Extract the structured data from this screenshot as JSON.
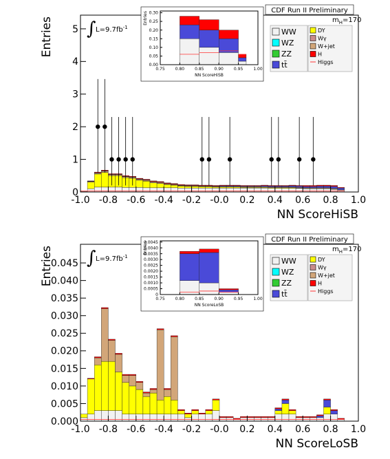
{
  "chart_data": [
    {
      "type": "stacked_histogram",
      "xlabel": "NN ScoreHiSB",
      "ylabel": "Entries",
      "title": "CDF Run II Preliminary",
      "mass": {
        "symbol": "m",
        "subscript": "H",
        "text": "=170"
      },
      "lumi": {
        "symbol": "∫",
        "text": "L=9.7fb",
        "sup": "-1"
      },
      "xlim": [
        -1,
        1
      ],
      "ylim": [
        0,
        5.42
      ],
      "xticks": [
        {
          "value": -1,
          "label": "-1.0"
        },
        -0.8,
        -0.6,
        -0.4,
        -0.2,
        {
          "value": 0,
          "label": "-0.0"
        },
        0.2,
        0.4,
        0.6,
        0.8,
        {
          "value": 1,
          "label": "1.0"
        }
      ],
      "yticks": [
        0,
        1,
        2,
        3,
        4,
        5
      ],
      "bins": [
        -1,
        -0.95,
        -0.9,
        -0.85,
        -0.8,
        -0.75,
        -0.7,
        -0.65,
        -0.6,
        -0.55,
        -0.5,
        -0.45,
        -0.4,
        -0.35,
        -0.3,
        -0.25,
        -0.2,
        -0.15,
        -0.1,
        -0.05,
        0,
        0.05,
        0.1,
        0.15,
        0.2,
        0.25,
        0.3,
        0.35,
        0.4,
        0.45,
        0.5,
        0.55,
        0.6,
        0.65,
        0.7,
        0.75,
        0.8,
        0.85,
        0.9,
        0.95,
        1
      ],
      "series": [
        {
          "name": "WW",
          "color": "#f2f2f2",
          "values": [
            0.02,
            0.1,
            0.15,
            0.15,
            0.15,
            0.15,
            0.14,
            0.14,
            0.14,
            0.13,
            0.13,
            0.13,
            0.13,
            0.13,
            0.12,
            0.12,
            0.12,
            0.12,
            0.12,
            0.12,
            0.12,
            0.12,
            0.12,
            0.12,
            0.12,
            0.12,
            0.12,
            0.11,
            0.11,
            0.11,
            0.11,
            0.11,
            0.1,
            0.1,
            0.1,
            0.1,
            0.08,
            0.06,
            0,
            0
          ]
        },
        {
          "name": "DY",
          "color": "#ffff00",
          "values": [
            0,
            0.2,
            0.4,
            0.45,
            0.35,
            0.35,
            0.3,
            0.28,
            0.22,
            0.2,
            0.15,
            0.13,
            0.1,
            0.08,
            0.06,
            0.05,
            0.05,
            0.04,
            0.04,
            0.03,
            0.03,
            0.03,
            0.03,
            0.02,
            0.02,
            0.02,
            0.02,
            0.02,
            0.02,
            0.02,
            0.02,
            0.01,
            0.01,
            0.01,
            0.01,
            0.01,
            0.01,
            0,
            0,
            0
          ]
        },
        {
          "name": "W+jet",
          "color": "#d2a679",
          "values": [
            0,
            0.02,
            0.03,
            0.04,
            0.03,
            0.03,
            0.03,
            0.03,
            0.03,
            0.03,
            0.03,
            0.03,
            0.02,
            0.02,
            0.02,
            0.02,
            0.02,
            0.02,
            0.02,
            0.02,
            0.02,
            0.02,
            0.02,
            0.02,
            0.02,
            0.02,
            0.02,
            0.02,
            0.02,
            0.02,
            0.02,
            0.02,
            0.02,
            0.02,
            0.02,
            0.02,
            0.02,
            0.01,
            0,
            0
          ]
        },
        {
          "name": "tt̄",
          "color": "#4a4ad8",
          "values": [
            0,
            0.01,
            0.01,
            0.01,
            0.01,
            0.01,
            0.01,
            0.01,
            0.01,
            0.01,
            0.01,
            0.01,
            0.01,
            0.01,
            0.01,
            0.01,
            0.01,
            0.01,
            0.01,
            0.01,
            0.02,
            0.02,
            0.02,
            0.02,
            0.02,
            0.02,
            0.03,
            0.03,
            0.03,
            0.03,
            0.04,
            0.04,
            0.04,
            0.04,
            0.05,
            0.05,
            0.06,
            0.05,
            0,
            0
          ]
        },
        {
          "name": "H",
          "color": "#ff0000",
          "values": [
            0,
            0.01,
            0.02,
            0.02,
            0.02,
            0.02,
            0.02,
            0.02,
            0.02,
            0.02,
            0.02,
            0.02,
            0.02,
            0.02,
            0.02,
            0.02,
            0.02,
            0.02,
            0.02,
            0.02,
            0.02,
            0.02,
            0.02,
            0.02,
            0.02,
            0.02,
            0.02,
            0.02,
            0.02,
            0.02,
            0.02,
            0.02,
            0.03,
            0.03,
            0.03,
            0.03,
            0.03,
            0.02,
            0,
            0
          ]
        }
      ],
      "lines": [
        {
          "name": "Higgs",
          "color": "#ff3333",
          "values": [
            0.03,
            0.03,
            0.03,
            0.03,
            0.03,
            0.03,
            0.03,
            0.03,
            0.03,
            0.03,
            0.03,
            0.03,
            0.03,
            0.03,
            0.03,
            0.03,
            0.03,
            0.03,
            0.03,
            0.03,
            0.03,
            0.03,
            0.03,
            0.03,
            0.03,
            0.03,
            0.03,
            0.03,
            0.03,
            0.03,
            0.03,
            0.03,
            0.03,
            0.03,
            0.03,
            0.03,
            0.03,
            0.03,
            0,
            0
          ]
        }
      ],
      "points": {
        "x": [
          -0.875,
          -0.825,
          -0.775,
          -0.725,
          -0.675,
          -0.625,
          -0.125,
          -0.075,
          0.075,
          0.375,
          0.425,
          0.575,
          0.675
        ],
        "y": [
          2,
          2,
          1,
          1,
          1,
          1,
          1,
          1,
          1,
          1,
          1,
          1,
          1
        ],
        "err_low": [
          1.4,
          1.4,
          0.8,
          0.8,
          0.8,
          0.8,
          0.8,
          0.8,
          0.8,
          0.8,
          0.8,
          0.8,
          0.8
        ],
        "err_high": [
          1.46,
          1.46,
          1.3,
          1.3,
          1.3,
          1.3,
          1.3,
          1.3,
          1.3,
          1.3,
          1.3,
          1.3,
          1.3
        ]
      },
      "legend": [
        {
          "name": "WW",
          "color": "#f2f2f2"
        },
        {
          "name": "WZ",
          "color": "#00ffff"
        },
        {
          "name": "ZZ",
          "color": "#33cc33"
        },
        {
          "name": "tt̄",
          "color": "#4a4ad8"
        },
        {
          "name": "DY",
          "color": "#ffff00"
        },
        {
          "name": "Wγ",
          "color": "#c98c8c"
        },
        {
          "name": "W+jet",
          "color": "#d2a679"
        },
        {
          "name": "H",
          "color": "#ff0000"
        },
        {
          "name": "Higgs",
          "color": "#ff3333"
        }
      ]
    },
    {
      "type": "stacked_histogram",
      "xlabel": "NN ScoreHiSB",
      "ylabel": "Entries",
      "xlim": [
        0.75,
        1
      ],
      "ylim": [
        0,
        0.31
      ],
      "xticks": [
        0.75,
        {
          "value": 0.8,
          "label": "0.80"
        },
        0.85,
        {
          "value": 0.9,
          "label": "0.90"
        },
        0.95,
        {
          "value": 1,
          "label": "1.00"
        }
      ],
      "yticks": [
        {
          "value": 0,
          "label": "0.00"
        },
        0.05,
        {
          "value": 0.1,
          "label": "0.10"
        },
        0.15,
        {
          "value": 0.2,
          "label": "0.20"
        },
        0.25,
        {
          "value": 0.3,
          "label": "0.30"
        }
      ],
      "bins": [
        0.8,
        0.85,
        0.9,
        0.95,
        0.97
      ],
      "series": [
        {
          "name": "WW",
          "color": "#f2f2f2",
          "values": [
            0.15,
            0.1,
            0.07,
            0.02
          ]
        },
        {
          "name": "tt̄",
          "color": "#4a4ad8",
          "values": [
            0.08,
            0.1,
            0.08,
            0.02
          ]
        },
        {
          "name": "H",
          "color": "#ff0000",
          "values": [
            0.05,
            0.06,
            0.05,
            0.02
          ]
        }
      ],
      "lines": [
        {
          "name": "Higgs",
          "color": "#ff3333",
          "values": [
            0.06,
            0.07,
            0.08,
            0.06
          ]
        }
      ]
    },
    {
      "type": "stacked_histogram",
      "xlabel": "NN ScoreLoSB",
      "ylabel": "Entries",
      "title": "CDF Run II Preliminary",
      "mass": {
        "symbol": "m",
        "subscript": "H",
        "text": "=170"
      },
      "lumi": {
        "symbol": "∫",
        "text": "L=9.7fb",
        "sup": "-1"
      },
      "xlim": [
        -1,
        1
      ],
      "ylim": [
        0,
        0.0503
      ],
      "xticks": [
        {
          "value": -1,
          "label": "-1.0"
        },
        -0.8,
        -0.6,
        -0.4,
        -0.2,
        {
          "value": 0,
          "label": "-0.0"
        },
        0.2,
        0.4,
        0.6,
        0.8,
        {
          "value": 1,
          "label": "1.0"
        }
      ],
      "yticks": [
        {
          "value": 0,
          "label": "0.000"
        },
        0.005,
        {
          "value": 0.01,
          "label": "0.010"
        },
        0.015,
        {
          "value": 0.02,
          "label": "0.020"
        },
        0.025,
        {
          "value": 0.03,
          "label": "0.030"
        },
        0.035,
        {
          "value": 0.04,
          "label": "0.040"
        },
        0.045
      ],
      "bins": [
        -1,
        -0.95,
        -0.9,
        -0.85,
        -0.8,
        -0.75,
        -0.7,
        -0.65,
        -0.6,
        -0.55,
        -0.5,
        -0.45,
        -0.4,
        -0.35,
        -0.3,
        -0.25,
        -0.2,
        -0.15,
        -0.1,
        -0.05,
        0,
        0.05,
        0.1,
        0.15,
        0.2,
        0.25,
        0.3,
        0.35,
        0.4,
        0.45,
        0.5,
        0.55,
        0.6,
        0.65,
        0.7,
        0.75,
        0.8,
        0.85,
        0.9,
        0.95,
        1
      ],
      "series": [
        {
          "name": "WW",
          "color": "#f2f2f2",
          "values": [
            0.001,
            0.002,
            0.003,
            0.003,
            0.003,
            0.003,
            0.002,
            0.002,
            0.002,
            0.002,
            0.002,
            0.002,
            0.002,
            0.002,
            0.002,
            0.001,
            0.002,
            0.002,
            0.002,
            0.003,
            0.001,
            0.001,
            0.0005,
            0.001,
            0.001,
            0.001,
            0.001,
            0.001,
            0.002,
            0.002,
            0.002,
            0.001,
            0.001,
            0.001,
            0.001,
            0.002,
            0.002,
            0.0005,
            0,
            0
          ]
        },
        {
          "name": "DY",
          "color": "#ffff00",
          "values": [
            0.001,
            0.01,
            0.013,
            0.014,
            0.014,
            0.011,
            0.009,
            0.008,
            0.007,
            0.005,
            0.006,
            0.004,
            0.005,
            0.004,
            0.001,
            0.001,
            0.001,
            0,
            0.001,
            0.003,
            0,
            0,
            0,
            0,
            0,
            0,
            0,
            0,
            0.001,
            0.003,
            0.001,
            0,
            0,
            0,
            0,
            0.002,
            0,
            0,
            0,
            0
          ]
        },
        {
          "name": "W+jet",
          "color": "#d2a679",
          "values": [
            0,
            0,
            0.002,
            0.015,
            0.006,
            0.005,
            0.002,
            0.003,
            0.002,
            0.001,
            0.001,
            0.02,
            0.002,
            0.018,
            0,
            0,
            0,
            0,
            0,
            0,
            0,
            0,
            0,
            0,
            0,
            0,
            0,
            0,
            0,
            0,
            0,
            0,
            0,
            0,
            0,
            0,
            0,
            0,
            0,
            0
          ]
        },
        {
          "name": "tt̄",
          "color": "#4a4ad8",
          "values": [
            0,
            0,
            0,
            0,
            0,
            0,
            0,
            0,
            0,
            0,
            0,
            0,
            0,
            0,
            0,
            0,
            0,
            0,
            0,
            0,
            0,
            0,
            0,
            0,
            0,
            0,
            0,
            0,
            0.0005,
            0.001,
            0,
            0,
            0,
            0,
            0.0005,
            0.002,
            0.001,
            0,
            0,
            0
          ]
        },
        {
          "name": "H",
          "color": "#ff0000",
          "values": [
            0,
            0.0002,
            0.0003,
            0.0003,
            0.0003,
            0.0003,
            0.0003,
            0.0003,
            0.0003,
            0.0003,
            0.0003,
            0.0003,
            0.0003,
            0.0003,
            0.0003,
            0.0003,
            0.0003,
            0.0003,
            0.0003,
            0.0003,
            0.0003,
            0.0003,
            0.0003,
            0.0003,
            0.0003,
            0.0003,
            0.0003,
            0.0003,
            0.0003,
            0.0003,
            0.0003,
            0.0003,
            0.0003,
            0.0003,
            0.0003,
            0.0003,
            0.0003,
            0.0003,
            0,
            0
          ]
        }
      ],
      "lines": [
        {
          "name": "Higgs",
          "color": "#ff3333",
          "values": [
            0.0005,
            0.0005,
            0.0005,
            0.0005,
            0.0005,
            0.0005,
            0.0005,
            0.0005,
            0.0005,
            0.0005,
            0.0005,
            0.0005,
            0.0005,
            0.0005,
            0.0005,
            0.0005,
            0.0005,
            0.0005,
            0.0005,
            0.0005,
            0.0005,
            0.0005,
            0.0005,
            0.0005,
            0.0005,
            0.0005,
            0.0005,
            0.0005,
            0.0005,
            0.0005,
            0.0005,
            0.0005,
            0.0005,
            0.0005,
            0.0005,
            0.0005,
            0.0005,
            0.0005,
            0,
            0
          ]
        }
      ],
      "legend": [
        {
          "name": "WW",
          "color": "#f2f2f2"
        },
        {
          "name": "WZ",
          "color": "#00ffff"
        },
        {
          "name": "ZZ",
          "color": "#33cc33"
        },
        {
          "name": "tt̄",
          "color": "#4a4ad8"
        },
        {
          "name": "DY",
          "color": "#ffff00"
        },
        {
          "name": "Wγ",
          "color": "#c98c8c"
        },
        {
          "name": "W+jet",
          "color": "#d2a679"
        },
        {
          "name": "H",
          "color": "#ff0000"
        },
        {
          "name": "Higgs",
          "color": "#ff3333"
        }
      ]
    },
    {
      "type": "stacked_histogram",
      "xlabel": "NN ScoreLoSB",
      "ylabel": "Entries",
      "xlim": [
        0.75,
        1
      ],
      "ylim": [
        0,
        0.0046
      ],
      "xticks": [
        0.75,
        {
          "value": 0.8,
          "label": "0.80"
        },
        0.85,
        {
          "value": 0.9,
          "label": "0.90"
        },
        0.95,
        {
          "value": 1,
          "label": "1.00"
        }
      ],
      "yticks": [
        0,
        0.0005,
        {
          "value": 0.001,
          "label": "0.0010"
        },
        0.0015,
        {
          "value": 0.002,
          "label": "0.0020"
        },
        0.0025,
        {
          "value": 0.003,
          "label": "0.0030"
        },
        0.0035,
        {
          "value": 0.004,
          "label": "0.0040"
        },
        0.0045
      ],
      "bins": [
        0.8,
        0.85,
        0.9,
        0.95
      ],
      "series": [
        {
          "name": "WW",
          "color": "#f2f2f2",
          "values": [
            0.0012,
            0.001,
            0.0002
          ]
        },
        {
          "name": "tt̄",
          "color": "#4a4ad8",
          "values": [
            0.0023,
            0.0026,
            0.0002
          ]
        },
        {
          "name": "H",
          "color": "#ff0000",
          "values": [
            0.0002,
            0.0003,
            0.0001
          ]
        }
      ],
      "lines": [
        {
          "name": "Higgs",
          "color": "#ff3333",
          "values": [
            0.0002,
            0.0003,
            0.0002
          ]
        }
      ]
    }
  ]
}
